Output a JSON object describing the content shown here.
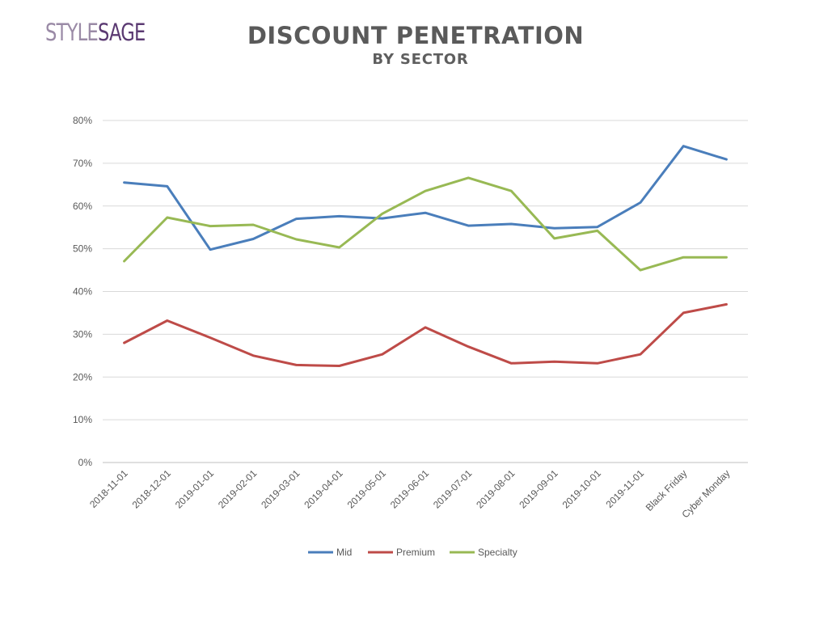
{
  "logo": {
    "style": "STYLE",
    "sage": "SAGE"
  },
  "header": {
    "title": "DISCOUNT PENETRATION",
    "subtitle": "BY SECTOR"
  },
  "chart_data": {
    "type": "line",
    "categories": [
      "2018-11-01",
      "2018-12-01",
      "2019-01-01",
      "2019-02-01",
      "2019-03-01",
      "2019-04-01",
      "2019-05-01",
      "2019-06-01",
      "2019-07-01",
      "2019-08-01",
      "2019-09-01",
      "2019-10-01",
      "2019-11-01",
      "Black Friday",
      "Cyber Monday"
    ],
    "series": [
      {
        "name": "Mid",
        "color": "#4a7ebb",
        "values": [
          65.5,
          64.6,
          49.8,
          52.3,
          57.0,
          57.6,
          57.1,
          58.4,
          55.4,
          55.8,
          54.8,
          55.1,
          60.8,
          74.0,
          70.9
        ]
      },
      {
        "name": "Premium",
        "color": "#be4b48",
        "values": [
          28.0,
          33.2,
          29.2,
          25.0,
          22.8,
          22.6,
          25.3,
          31.6,
          27.1,
          23.2,
          23.6,
          23.2,
          25.3,
          35.0,
          37.0
        ]
      },
      {
        "name": "Specialty",
        "color": "#98b954",
        "values": [
          47.1,
          57.3,
          55.3,
          55.6,
          52.2,
          50.3,
          58.2,
          63.5,
          66.6,
          63.5,
          52.4,
          54.2,
          45.0,
          48.0,
          48.0
        ]
      }
    ],
    "yticks": [
      "0%",
      "10%",
      "20%",
      "30%",
      "40%",
      "50%",
      "60%",
      "70%",
      "80%"
    ],
    "ylim": [
      0,
      80
    ],
    "grid": true,
    "legend_position": "bottom"
  }
}
